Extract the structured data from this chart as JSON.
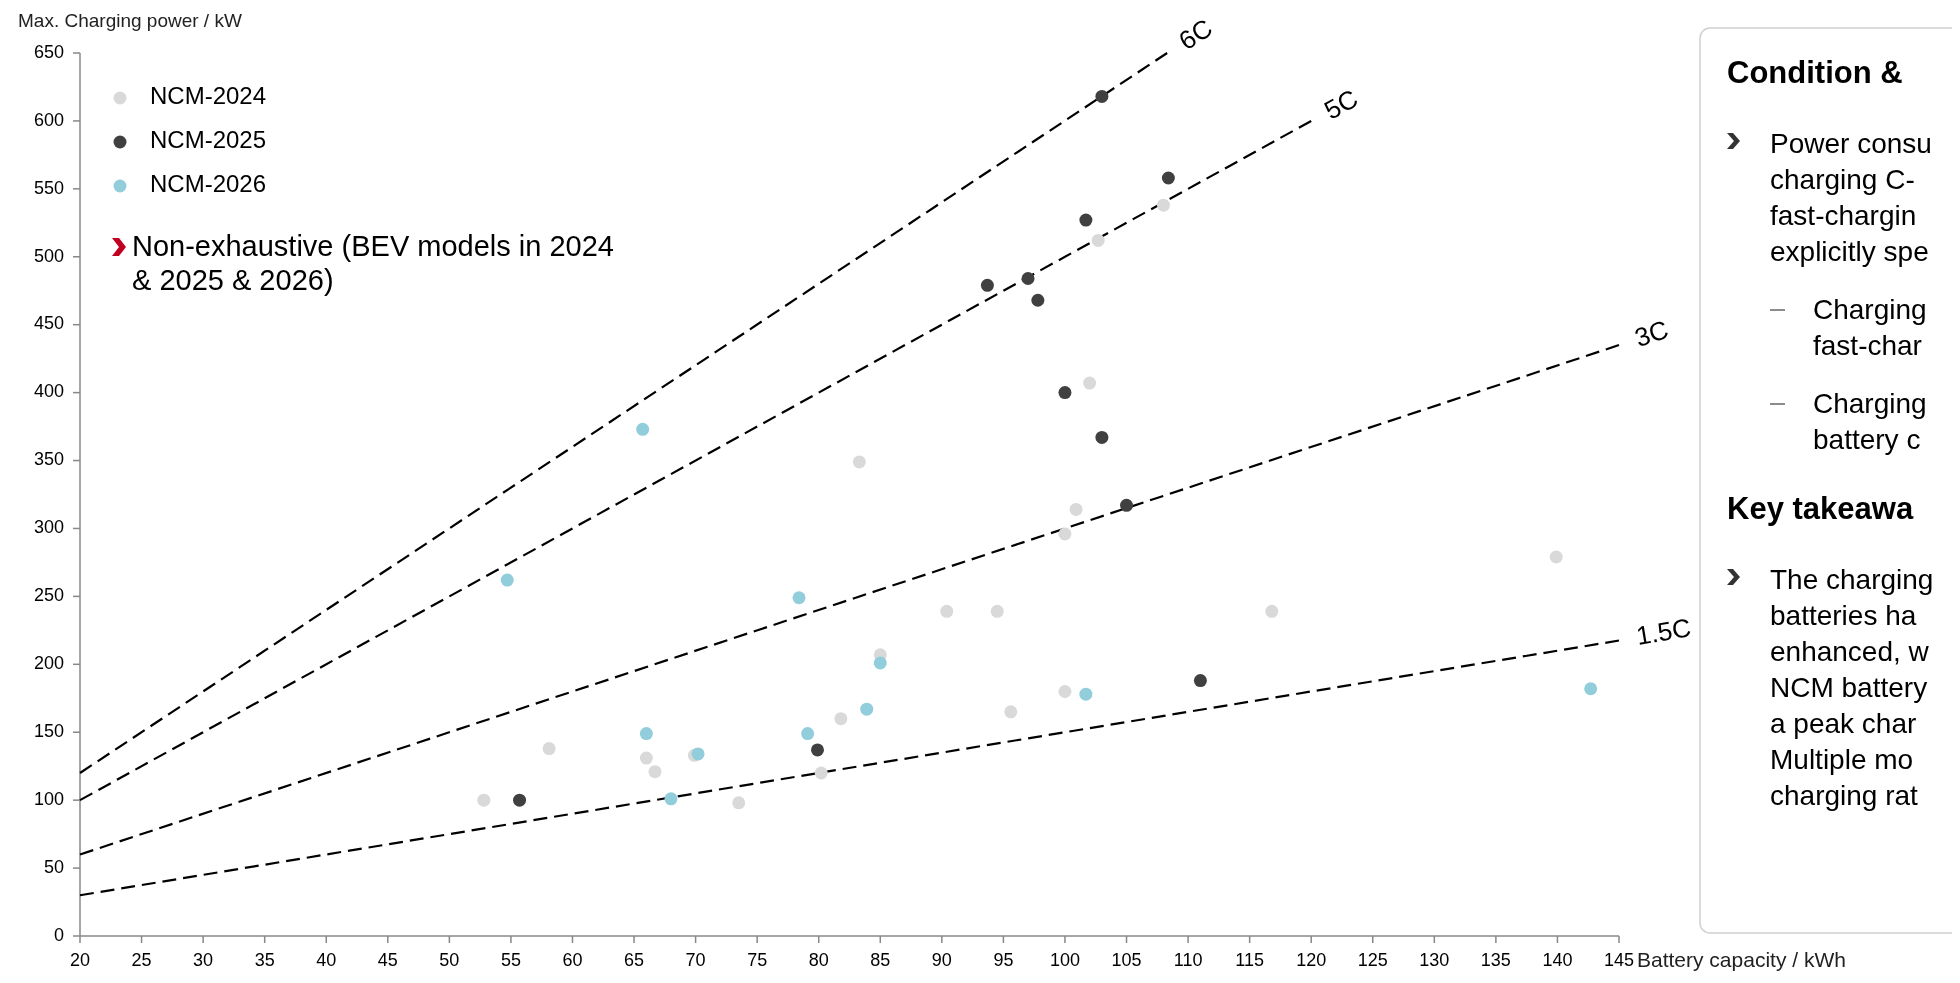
{
  "chart_data": [
    {
      "type": "scatter",
      "xlabel": "Battery capacity / kWh",
      "ylabel": "Max. Charging power / kW",
      "xlim": [
        20,
        145
      ],
      "xticks": [
        20,
        25,
        30,
        35,
        40,
        45,
        50,
        55,
        60,
        65,
        70,
        75,
        80,
        85,
        90,
        95,
        100,
        105,
        110,
        115,
        120,
        125,
        130,
        135,
        140,
        145
      ],
      "ylim": [
        0,
        650
      ],
      "yticks": [
        0,
        50,
        100,
        150,
        200,
        250,
        300,
        350,
        400,
        450,
        500,
        550,
        600,
        650
      ],
      "grid": false,
      "legend": "top left",
      "marker": "circle",
      "annotations": [
        "Non-exhaustive  (BEV models in 2024\n& 2025 & 2026)"
      ],
      "series": [
        {
          "type": "line",
          "name": "6C",
          "color": "#000000",
          "line_style": "dashed",
          "marker": "none",
          "x": [
            20,
            108.3
          ],
          "values": [
            120,
            650
          ]
        },
        {
          "type": "line",
          "name": "5C",
          "color": "#000000",
          "line_style": "dashed",
          "marker": "none",
          "x": [
            20,
            120
          ],
          "values": [
            100,
            600
          ]
        },
        {
          "type": "line",
          "name": "3C",
          "color": "#000000",
          "line_style": "dashed",
          "marker": "none",
          "x": [
            20,
            145
          ],
          "values": [
            60,
            435
          ]
        },
        {
          "type": "line",
          "name": "1.5C",
          "color": "#000000",
          "line_style": "dashed",
          "marker": "none",
          "x": [
            20,
            145
          ],
          "values": [
            30,
            217.5
          ]
        },
        {
          "name": "NCM-2024",
          "color": "#d9d9d9",
          "x": [
            83.3,
            90.4,
            85.0,
            81.8,
            58.1,
            66.0,
            66.7,
            69.9,
            52.8,
            73.5,
            80.2,
            100.9,
            100.0,
            94.5,
            116.8,
            139.9,
            100.0,
            95.6,
            108.0,
            102.7,
            102.0
          ],
          "values": [
            349,
            239,
            207,
            160,
            138,
            131,
            121,
            133,
            100,
            98,
            120,
            314,
            296,
            239,
            239,
            279,
            180,
            165,
            538,
            512,
            407
          ]
        },
        {
          "name": "NCM-2025",
          "color": "#404040",
          "x": [
            55.7,
            79.9,
            103.0,
            105.0,
            111.0,
            103.0,
            108.4,
            101.7,
            97.0,
            93.7,
            97.8,
            100.0
          ],
          "values": [
            100,
            137,
            367,
            317,
            188,
            618,
            558,
            527,
            484,
            479,
            468,
            400
          ]
        },
        {
          "name": "NCM-2026",
          "color": "#92cddc",
          "x": [
            65.7,
            54.7,
            78.4,
            85.0,
            83.9,
            79.1,
            66.0,
            70.2,
            68.0,
            101.7,
            142.7
          ],
          "values": [
            373,
            262,
            249,
            201,
            167,
            149,
            149,
            134,
            101,
            178,
            182
          ]
        }
      ]
    },
    {
      "type": "other",
      "title": "Condition &",
      "subtitle": "Key takeawa",
      "annotations": [
        "Power consu\ncharging C-\nfast-chargin\nexplicitly spe",
        "Charging\nfast-char",
        "Charging\nbattery c",
        "The charging\nbatteries ha\nenhanced, w\nNCM battery\na peak char\nMultiple mo\ncharging rat"
      ]
    }
  ]
}
